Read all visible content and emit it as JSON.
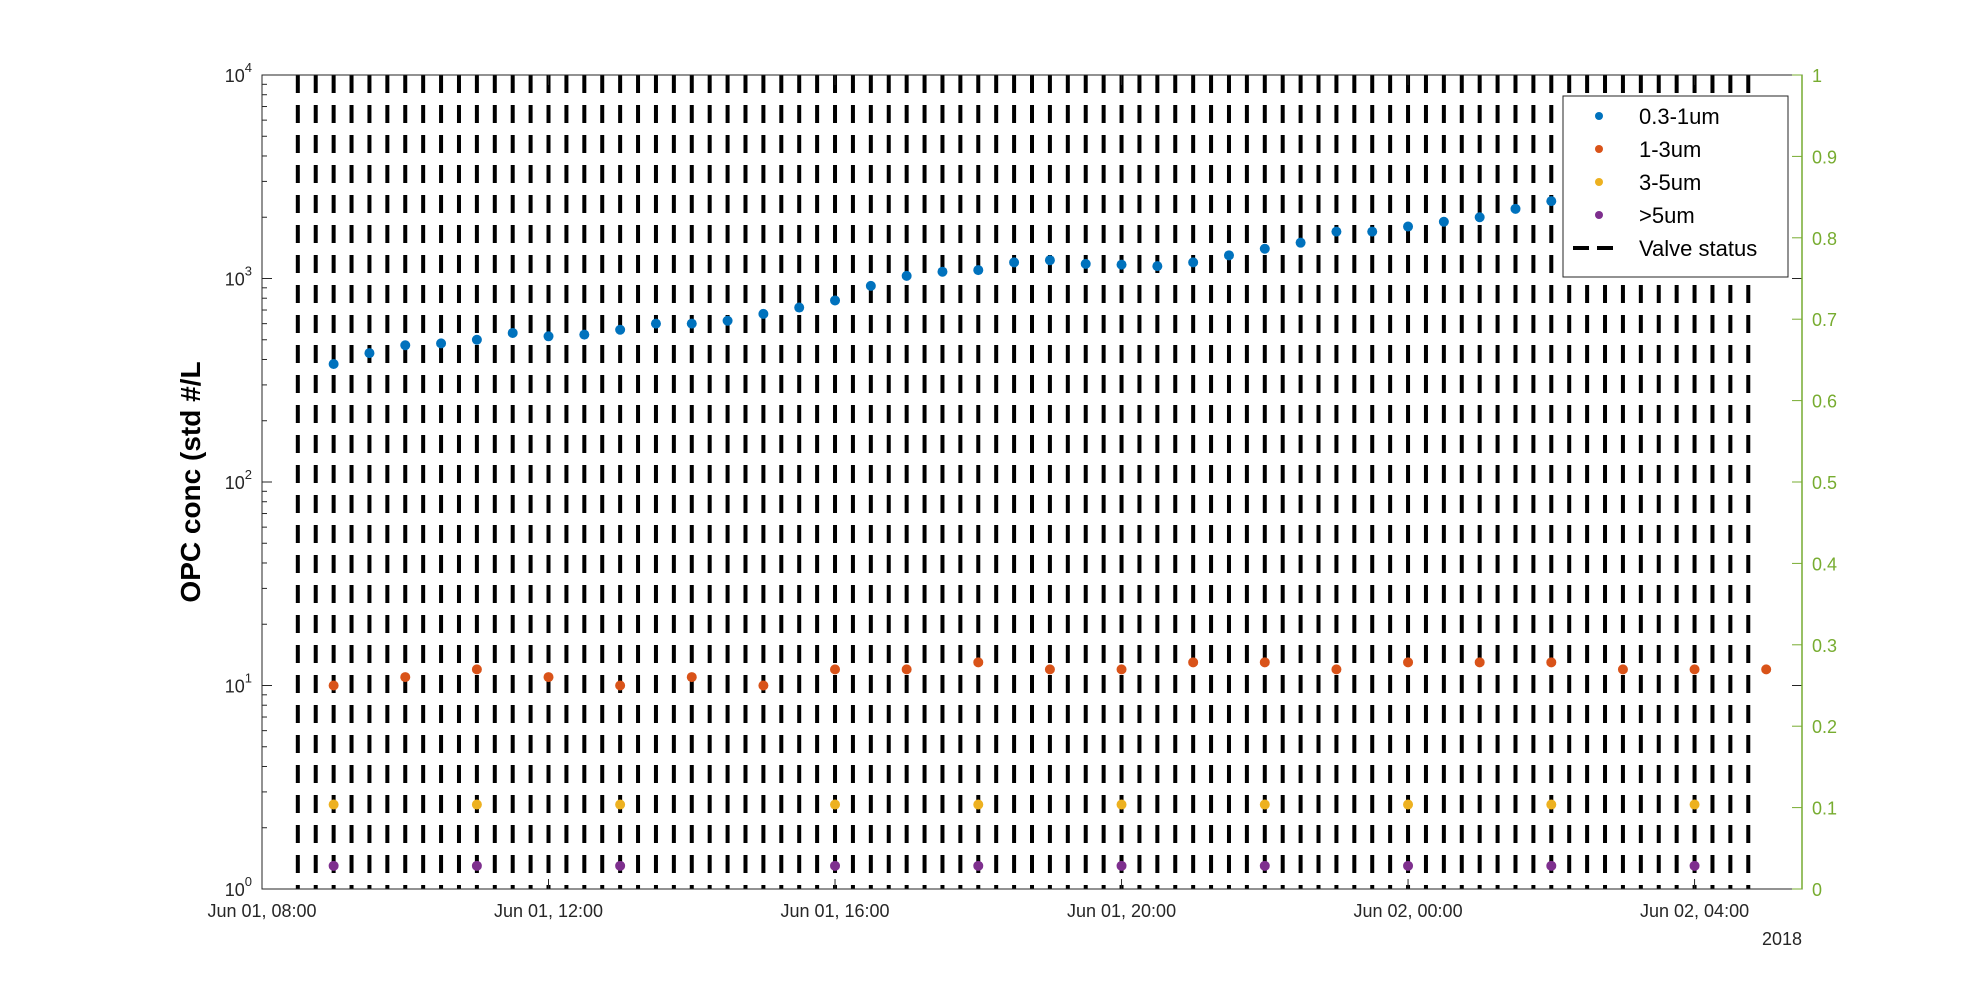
{
  "chart_data": {
    "type": "scatter",
    "ylabel": "OPC conc (std #/L",
    "y_scale": "log",
    "ylim": [
      1,
      10000
    ],
    "y_ticks": [
      {
        "value": 1,
        "base": "10",
        "exp": "0"
      },
      {
        "value": 10,
        "base": "10",
        "exp": "1"
      },
      {
        "value": 100,
        "base": "10",
        "exp": "2"
      },
      {
        "value": 1000,
        "base": "10",
        "exp": "3"
      },
      {
        "value": 10000,
        "base": "10",
        "exp": "4"
      }
    ],
    "xlim": [
      "2018-06-01T08:00",
      "2018-06-02T05:30"
    ],
    "x_ticks": [
      {
        "value": "2018-06-01T08:00",
        "label": "Jun 01, 08:00"
      },
      {
        "value": "2018-06-01T12:00",
        "label": "Jun 01, 12:00"
      },
      {
        "value": "2018-06-01T16:00",
        "label": "Jun 01, 16:00"
      },
      {
        "value": "2018-06-01T20:00",
        "label": "Jun 01, 20:00"
      },
      {
        "value": "2018-06-02T00:00",
        "label": "Jun 02, 00:00"
      },
      {
        "value": "2018-06-02T04:00",
        "label": "Jun 02, 04:00"
      }
    ],
    "x_secondary_label": "2018",
    "y2lim": [
      0,
      1
    ],
    "y2_ticks": [
      "0",
      "0.1",
      "0.2",
      "0.3",
      "0.4",
      "0.5",
      "0.6",
      "0.7",
      "0.8",
      "0.9",
      "1"
    ],
    "y2_color": "#77AC30",
    "grid": false,
    "legend_position": "top-right",
    "series": [
      {
        "name": "0.3-1um",
        "color": "#0072BD",
        "marker": "dot",
        "x": [
          "2018-06-01T09:00",
          "2018-06-01T09:30",
          "2018-06-01T10:00",
          "2018-06-01T10:30",
          "2018-06-01T11:00",
          "2018-06-01T11:30",
          "2018-06-01T12:00",
          "2018-06-01T12:30",
          "2018-06-01T13:00",
          "2018-06-01T13:30",
          "2018-06-01T14:00",
          "2018-06-01T14:30",
          "2018-06-01T15:00",
          "2018-06-01T15:30",
          "2018-06-01T16:00",
          "2018-06-01T16:30",
          "2018-06-01T17:00",
          "2018-06-01T17:30",
          "2018-06-01T18:00",
          "2018-06-01T18:30",
          "2018-06-01T19:00",
          "2018-06-01T19:30",
          "2018-06-01T20:00",
          "2018-06-01T20:30",
          "2018-06-01T21:00",
          "2018-06-01T21:30",
          "2018-06-01T22:00",
          "2018-06-01T22:30",
          "2018-06-01T23:00",
          "2018-06-01T23:30",
          "2018-06-02T00:00",
          "2018-06-02T00:30",
          "2018-06-02T01:00",
          "2018-06-02T01:30",
          "2018-06-02T02:00",
          "2018-06-02T02:30",
          "2018-06-02T03:00",
          "2018-06-02T03:30",
          "2018-06-02T04:00",
          "2018-06-02T04:30",
          "2018-06-02T05:00"
        ],
        "y": [
          380,
          430,
          470,
          480,
          500,
          540,
          520,
          530,
          560,
          600,
          600,
          620,
          670,
          720,
          780,
          920,
          1030,
          1080,
          1100,
          1200,
          1230,
          1180,
          1170,
          1150,
          1200,
          1300,
          1400,
          1500,
          1700,
          1700,
          1800,
          1900,
          2000,
          2200,
          2400,
          2500,
          2500,
          2300,
          2100,
          2000,
          1900
        ]
      },
      {
        "name": "1-3um",
        "color": "#D95319",
        "marker": "dot",
        "x": [
          "2018-06-01T09:00",
          "2018-06-01T10:00",
          "2018-06-01T11:00",
          "2018-06-01T12:00",
          "2018-06-01T13:00",
          "2018-06-01T14:00",
          "2018-06-01T15:00",
          "2018-06-01T16:00",
          "2018-06-01T17:00",
          "2018-06-01T18:00",
          "2018-06-01T19:00",
          "2018-06-01T20:00",
          "2018-06-01T21:00",
          "2018-06-01T22:00",
          "2018-06-01T23:00",
          "2018-06-02T00:00",
          "2018-06-02T01:00",
          "2018-06-02T02:00",
          "2018-06-02T03:00",
          "2018-06-02T04:00",
          "2018-06-02T05:00"
        ],
        "y": [
          10,
          11,
          12,
          11,
          10,
          11,
          10,
          12,
          12,
          13,
          12,
          12,
          13,
          13,
          12,
          13,
          13,
          13,
          12,
          12,
          12
        ]
      },
      {
        "name": "3-5um",
        "color": "#EDB120",
        "marker": "dot",
        "x": [
          "2018-06-01T09:00",
          "2018-06-01T11:00",
          "2018-06-01T13:00",
          "2018-06-01T16:00",
          "2018-06-01T18:00",
          "2018-06-01T20:00",
          "2018-06-01T22:00",
          "2018-06-02T00:00",
          "2018-06-02T02:00",
          "2018-06-02T04:00"
        ],
        "y": [
          2.6,
          2.6,
          2.6,
          2.6,
          2.6,
          2.6,
          2.6,
          2.6,
          2.6,
          2.6
        ]
      },
      {
        "name": ">5um",
        "color": "#7E2F8E",
        "marker": "dot",
        "x": [
          "2018-06-01T09:00",
          "2018-06-01T11:00",
          "2018-06-01T13:00",
          "2018-06-01T16:00",
          "2018-06-01T18:00",
          "2018-06-01T20:00",
          "2018-06-01T22:00",
          "2018-06-02T00:00",
          "2018-06-02T02:00",
          "2018-06-02T04:00"
        ],
        "y": [
          1.3,
          1.3,
          1.3,
          1.3,
          1.3,
          1.3,
          1.3,
          1.3,
          1.3,
          1.3
        ]
      },
      {
        "name": "Valve status",
        "color": "#000000",
        "style": "dashed",
        "axis": "right",
        "x_start": "2018-06-01T08:30",
        "interval_minutes": 15,
        "count": 82,
        "y_range": [
          0,
          1
        ]
      }
    ]
  }
}
